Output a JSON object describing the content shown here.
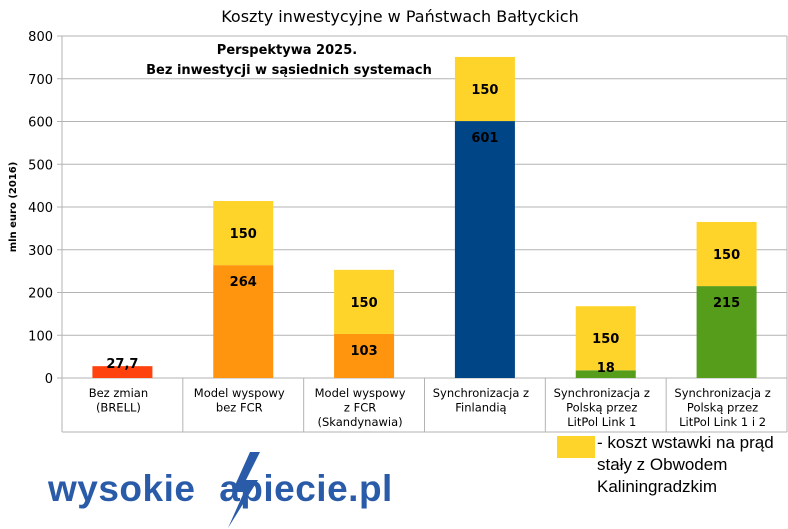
{
  "chart_data": {
    "type": "bar",
    "stacked": true,
    "title": "Koszty inwestycyjne w Państwach Bałtyckich",
    "annotation": [
      "Perspektywa 2025.",
      "Bez inwestycji w sąsiednich systemach"
    ],
    "ylabel": "mln euro (2016)",
    "xlabel": "",
    "ylim": [
      0,
      800
    ],
    "yticks": [
      0,
      100,
      200,
      300,
      400,
      500,
      600,
      700,
      800
    ],
    "grid": true,
    "categories": [
      [
        "Bez zmian",
        "(BRELL)"
      ],
      [
        "Model wyspowy",
        "bez FCR"
      ],
      [
        "Model wyspowy",
        "z FCR",
        "(Skandynawia)"
      ],
      [
        "Synchronizacja z",
        "Finlandią"
      ],
      [
        "Synchronizacja z",
        "Polską przez",
        "LitPol Link 1"
      ],
      [
        "Synchronizacja z",
        "Polską przez",
        "LitPol Link 1 i 2"
      ]
    ],
    "series": [
      {
        "values": [
          27.7,
          264,
          103,
          601,
          18,
          215
        ],
        "labels": [
          "27,7",
          "264",
          "103",
          "601",
          "18",
          "215"
        ],
        "colors": [
          "#FF420E",
          "#FF950E",
          "#FF950E",
          "#004586",
          "#579D1C",
          "#579D1C"
        ]
      },
      {
        "name": "- koszt wstawki na prąd stały z Obwodem Kaliningradzkim",
        "values": [
          0,
          150,
          150,
          150,
          150,
          150
        ],
        "labels": [
          "",
          "150",
          "150",
          "150",
          "150",
          "150"
        ],
        "color": "#FFD42A"
      }
    ],
    "legend_position": "bottom-right"
  },
  "legend": {
    "text": "- koszt wstawki na prąd stały z Obwodem Kaliningradzkim",
    "color": "#FFD42A"
  },
  "logo": {
    "text": "wysokienapiecie.pl",
    "color": "#2a5ba8"
  }
}
